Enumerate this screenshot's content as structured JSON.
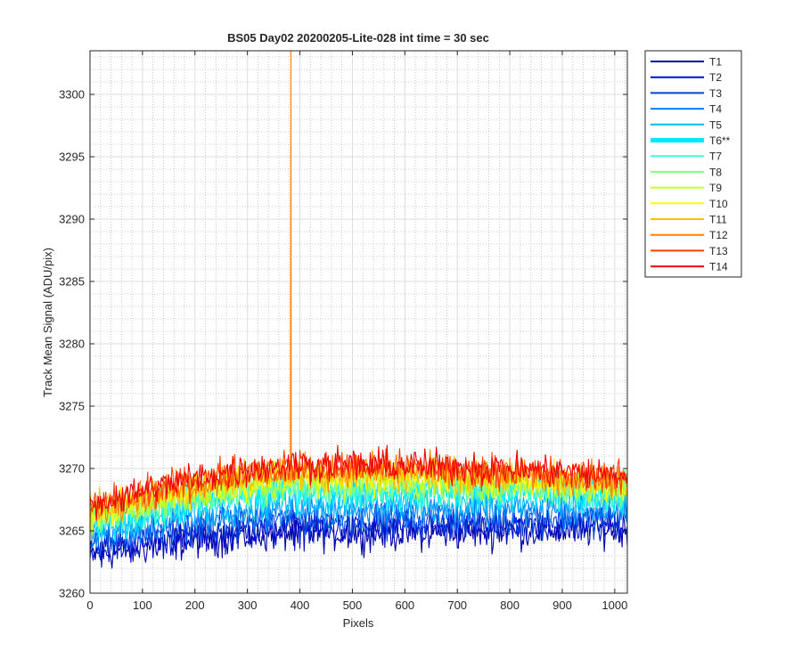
{
  "chart_data": {
    "type": "line",
    "title": "BS05 Day02 20200205-Lite-028 int time = 30 sec",
    "xlabel": "Pixels",
    "ylabel": "Track Mean Signal (ADU/pix)",
    "xlim": [
      0,
      1024
    ],
    "ylim": [
      3260,
      3303.5
    ],
    "xticks": [
      0,
      100,
      200,
      300,
      400,
      500,
      600,
      700,
      800,
      900,
      1000
    ],
    "yticks": [
      3260,
      3265,
      3270,
      3275,
      3280,
      3285,
      3290,
      3295,
      3300
    ],
    "grid": "major and minor",
    "legend_position": "outside-right",
    "series": [
      {
        "name": "T1",
        "color": "#0000a8",
        "start": 3263.0,
        "plateau": 3264.8,
        "end": 3265.2,
        "noise": 1.6
      },
      {
        "name": "T2",
        "color": "#0010c8",
        "start": 3263.4,
        "plateau": 3265.1,
        "end": 3265.5,
        "noise": 1.6
      },
      {
        "name": "T3",
        "color": "#0040e0",
        "start": 3264.0,
        "plateau": 3265.8,
        "end": 3266.0,
        "noise": 1.5
      },
      {
        "name": "T4",
        "color": "#0080ff",
        "start": 3264.5,
        "plateau": 3266.5,
        "end": 3266.6,
        "noise": 1.5
      },
      {
        "name": "T5",
        "color": "#00b8ff",
        "start": 3265.0,
        "plateau": 3267.2,
        "end": 3267.2,
        "noise": 1.5
      },
      {
        "name": "T6**",
        "color": "#00e8ff",
        "start": 3265.3,
        "plateau": 3268.3,
        "end": 3268.0,
        "noise": 1.8,
        "bold": true
      },
      {
        "name": "T7",
        "color": "#40ffd0",
        "start": 3265.5,
        "plateau": 3268.3,
        "end": 3268.0,
        "noise": 1.6
      },
      {
        "name": "T8",
        "color": "#80ff80",
        "start": 3265.8,
        "plateau": 3268.6,
        "end": 3268.2,
        "noise": 1.5
      },
      {
        "name": "T9",
        "color": "#c0ff30",
        "start": 3266.0,
        "plateau": 3268.9,
        "end": 3268.4,
        "noise": 1.5
      },
      {
        "name": "T10",
        "color": "#ffff00",
        "start": 3266.2,
        "plateau": 3269.3,
        "end": 3268.6,
        "noise": 1.5
      },
      {
        "name": "T11",
        "color": "#ffc000",
        "start": 3266.4,
        "plateau": 3269.6,
        "end": 3268.8,
        "noise": 1.5
      },
      {
        "name": "T12",
        "color": "#ff8000",
        "start": 3266.6,
        "plateau": 3269.9,
        "end": 3269.0,
        "noise": 1.5,
        "spike": {
          "x": 383,
          "y": 3303.5
        }
      },
      {
        "name": "T13",
        "color": "#ff4000",
        "start": 3266.8,
        "plateau": 3270.1,
        "end": 3269.2,
        "noise": 1.5
      },
      {
        "name": "T14",
        "color": "#f00000",
        "start": 3267.0,
        "plateau": 3270.3,
        "end": 3269.4,
        "noise": 1.5
      }
    ]
  }
}
